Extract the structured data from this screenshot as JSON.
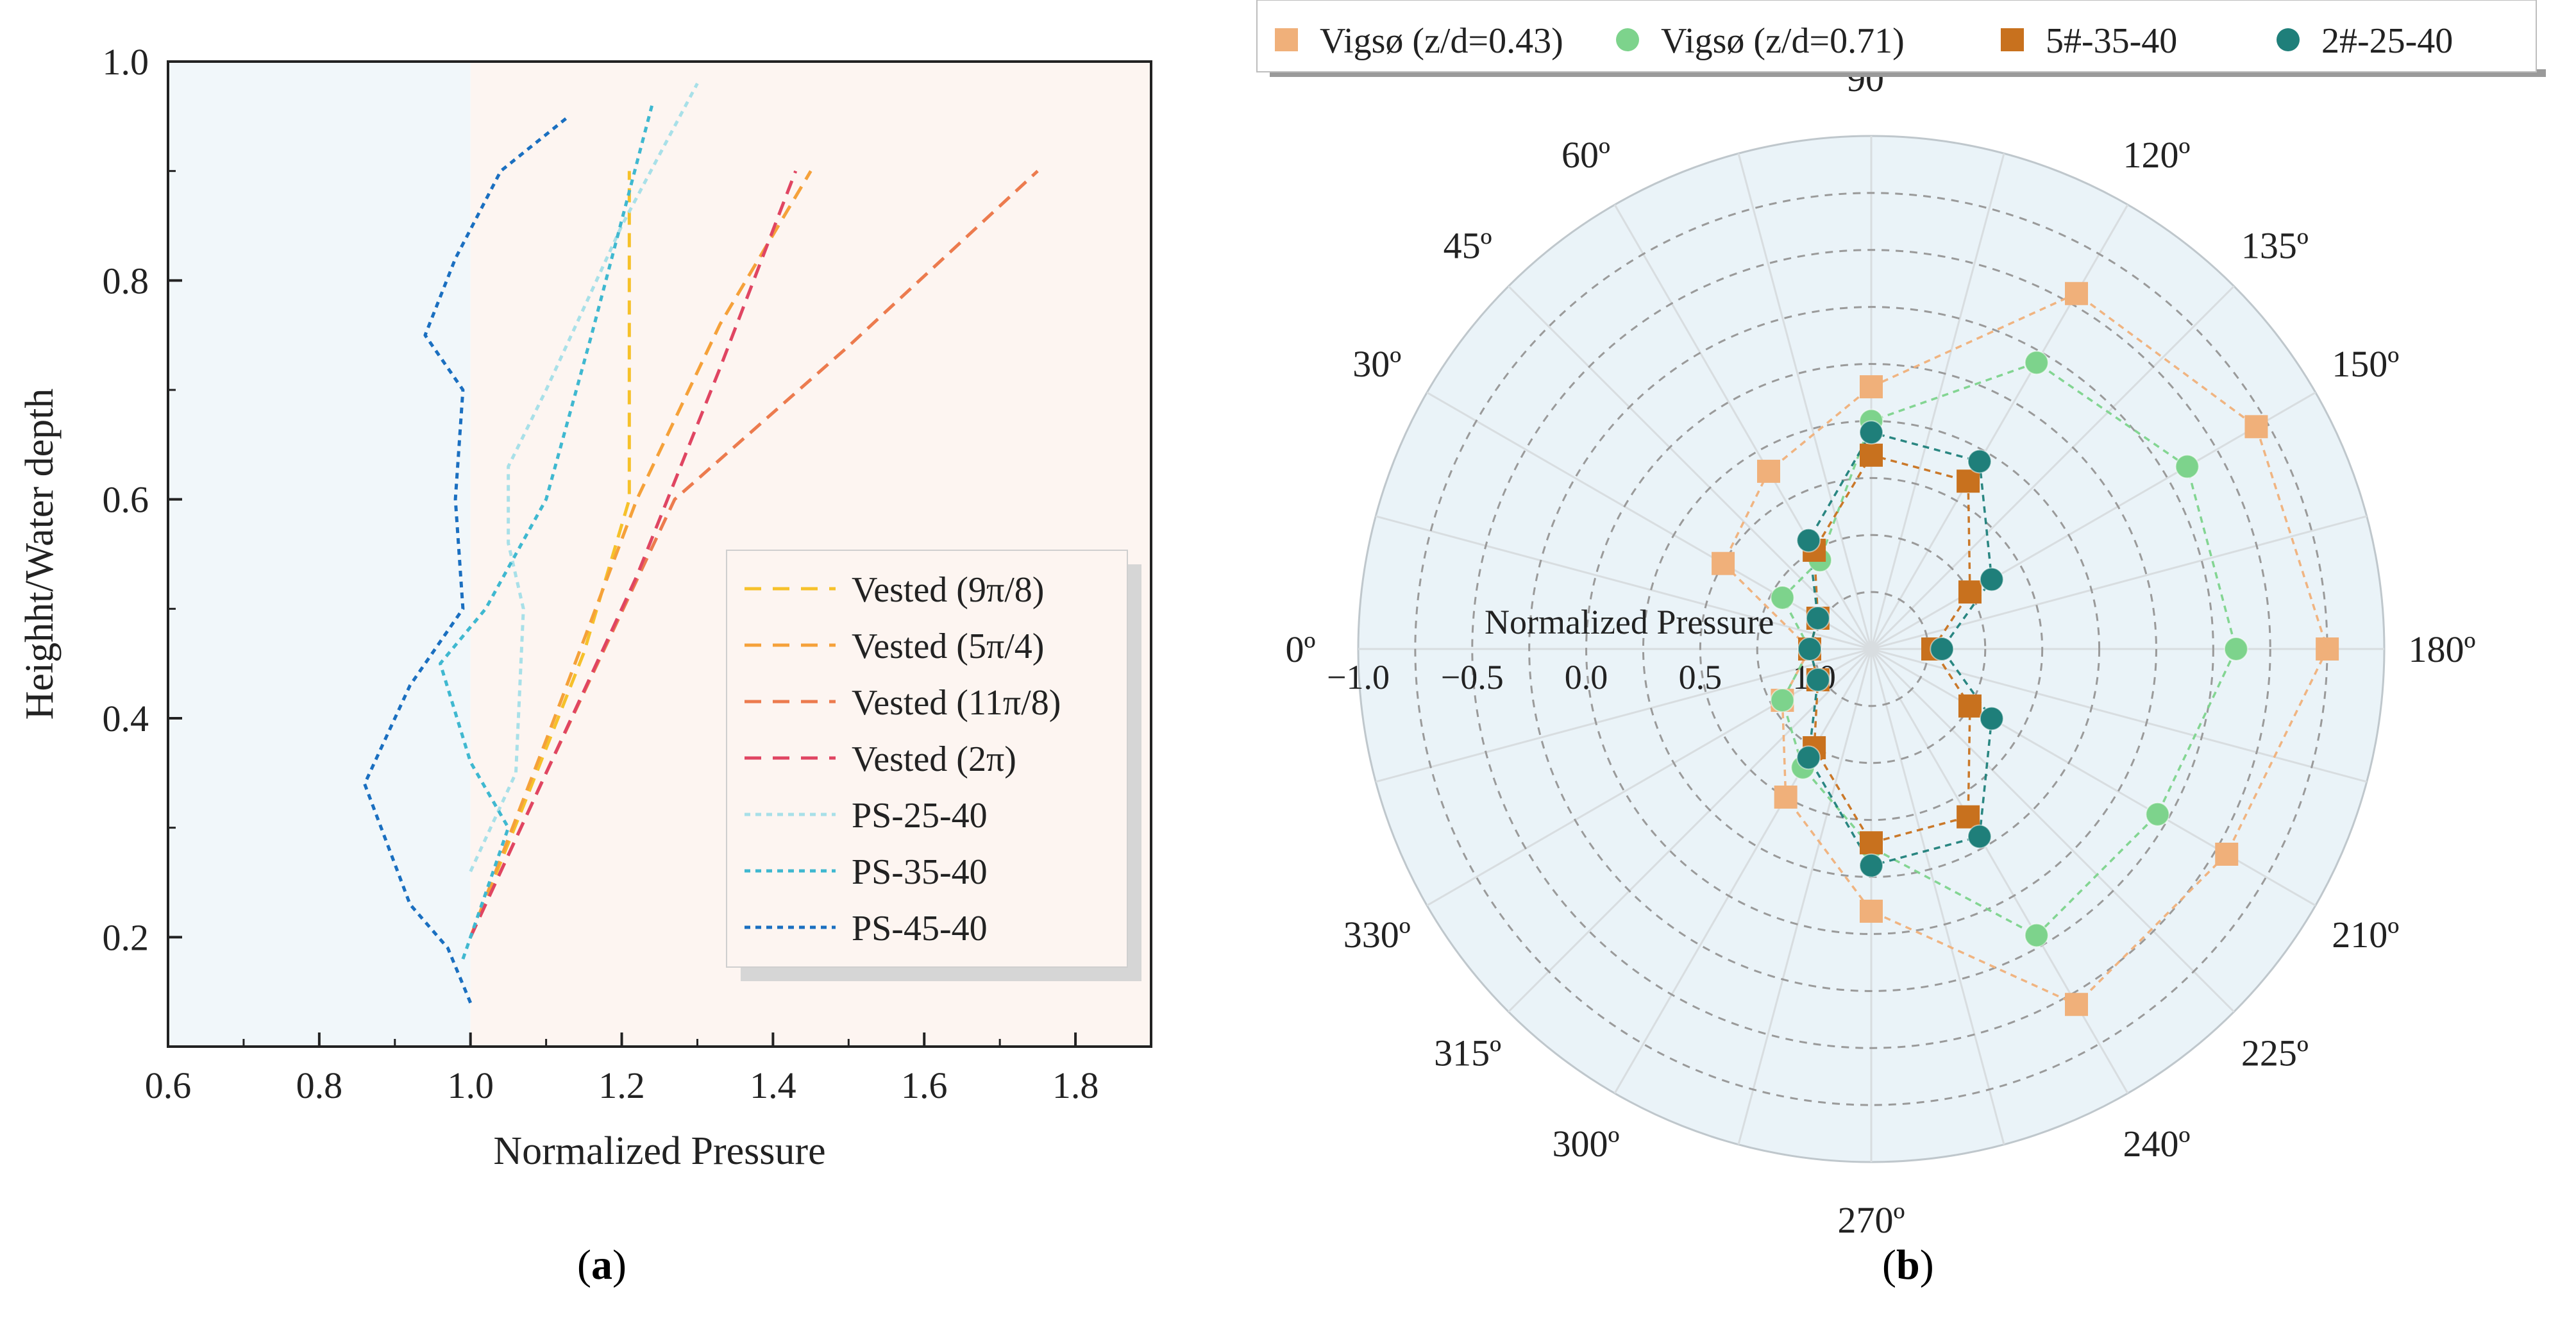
{
  "panels": {
    "a": {
      "caption_letter": "a"
    },
    "b": {
      "caption_letter": "b"
    }
  },
  "colors": {
    "left_bg": "#f1f7fa",
    "right_bg": "#fdf5f1",
    "polar_bg": "#eaf3f8",
    "grid": "#9a9a9a",
    "spoke": "#d8dde0"
  },
  "chart_data": [
    {
      "id": "a",
      "type": "line",
      "title": "",
      "xlabel": "Normalized Pressure",
      "ylabel": "Heighht/Water depth",
      "xlim": [
        0.6,
        1.9
      ],
      "ylim": [
        0.1,
        1.0
      ],
      "xticks": [
        0.6,
        0.8,
        1.0,
        1.2,
        1.4,
        1.6,
        1.8
      ],
      "xtick_labels": [
        "0.6",
        "0.8",
        "1.0",
        "1.2",
        "1.4",
        "1.6",
        "1.8"
      ],
      "yticks": [
        0.2,
        0.4,
        0.6,
        0.8,
        1.0
      ],
      "ytick_labels": [
        "0.2",
        "0.4",
        "0.6",
        "0.8",
        "1.0"
      ],
      "shaded_split_x": 1.0,
      "legend_position": "lower-right",
      "series": [
        {
          "name": "Vested (9π/8)",
          "color": "#f6c12a",
          "style": "dash",
          "x": [
            1.0,
            1.07,
            1.15,
            1.21,
            1.21,
            1.21
          ],
          "y": [
            0.2,
            0.32,
            0.46,
            0.6,
            0.75,
            0.9
          ]
        },
        {
          "name": "Vested (5π/4)",
          "color": "#f5a13a",
          "style": "dash",
          "x": [
            1.0,
            1.1,
            1.22,
            1.33,
            1.45
          ],
          "y": [
            0.2,
            0.38,
            0.6,
            0.76,
            0.9
          ]
        },
        {
          "name": "Vested (11π/8)",
          "color": "#ec7b4e",
          "style": "dash",
          "x": [
            1.0,
            1.1,
            1.27,
            1.5,
            1.75
          ],
          "y": [
            0.2,
            0.35,
            0.6,
            0.74,
            0.9
          ]
        },
        {
          "name": "Vested (2π)",
          "color": "#e04562",
          "style": "dash",
          "x": [
            1.0,
            1.1,
            1.22,
            1.33,
            1.43
          ],
          "y": [
            0.2,
            0.35,
            0.53,
            0.72,
            0.9
          ]
        },
        {
          "name": "PS-25-40",
          "color": "#a8e0e8",
          "style": "dot",
          "x": [
            1.0,
            1.06,
            1.07,
            1.05,
            1.05,
            1.1,
            1.2,
            1.3
          ],
          "y": [
            0.26,
            0.35,
            0.5,
            0.56,
            0.63,
            0.7,
            0.85,
            0.98
          ]
        },
        {
          "name": "PS-35-40",
          "color": "#3fb8d0",
          "style": "dot",
          "x": [
            0.99,
            1.05,
            1.0,
            0.96,
            1.02,
            1.1,
            1.16,
            1.24
          ],
          "y": [
            0.18,
            0.3,
            0.36,
            0.45,
            0.5,
            0.6,
            0.75,
            0.96
          ]
        },
        {
          "name": "PS-45-40",
          "color": "#1a6fc0",
          "style": "dot",
          "x": [
            1.0,
            0.97,
            0.92,
            0.86,
            0.92,
            0.99,
            0.98,
            0.99,
            0.94,
            0.98,
            1.04,
            1.13
          ],
          "y": [
            0.14,
            0.19,
            0.23,
            0.34,
            0.43,
            0.5,
            0.6,
            0.7,
            0.75,
            0.82,
            0.9,
            0.95
          ]
        }
      ]
    },
    {
      "id": "b",
      "type": "polar-scatter",
      "title": "",
      "r_label": "Normalized Pressure",
      "r_range": [
        1.25,
        -1.0
      ],
      "r_ticks": [
        1.0,
        0.5,
        0.0,
        -0.5,
        -1.0
      ],
      "r_tick_labels": [
        "1.0",
        "0.5",
        "0.0",
        "−0.5",
        "−1.0"
      ],
      "angle_labels": [
        {
          "deg": 0,
          "label": "0º"
        },
        {
          "deg": 30,
          "label": "30º"
        },
        {
          "deg": 45,
          "label": "45º"
        },
        {
          "deg": 60,
          "label": "60º"
        },
        {
          "deg": 90,
          "label": "90º"
        },
        {
          "deg": 120,
          "label": "120º"
        },
        {
          "deg": 135,
          "label": "135º"
        },
        {
          "deg": 150,
          "label": "150º"
        },
        {
          "deg": 180,
          "label": "180º"
        },
        {
          "deg": 210,
          "label": "210º"
        },
        {
          "deg": 225,
          "label": "225º"
        },
        {
          "deg": 240,
          "label": "240º"
        },
        {
          "deg": 270,
          "label": "270º"
        },
        {
          "deg": 300,
          "label": "300º"
        },
        {
          "deg": 315,
          "label": "315º"
        },
        {
          "deg": 330,
          "label": "330º"
        }
      ],
      "angle_convention": "0º at left, increasing clockwise",
      "legend_position": "top",
      "series": [
        {
          "name": "Vigsø (z/d=0.43)",
          "color": "#f0b07a",
          "marker": "square",
          "angles": [
            0,
            30,
            60,
            90,
            120,
            150,
            180,
            210,
            240,
            270,
            300,
            330
          ],
          "values": [
            0.98,
            0.5,
            0.35,
            0.1,
            -0.55,
            -0.7,
            -0.75,
            -0.55,
            -0.55,
            0.1,
            0.5,
            0.8
          ]
        },
        {
          "name": "Vigsø (z/d=0.71)",
          "color": "#7dd38c",
          "marker": "circle",
          "angles": [
            0,
            30,
            60,
            90,
            120,
            150,
            180,
            210,
            240,
            270,
            300,
            330
          ],
          "values": [
            0.98,
            0.8,
            0.8,
            0.25,
            -0.2,
            -0.35,
            -0.35,
            -0.2,
            -0.2,
            0.38,
            0.65,
            0.8
          ]
        },
        {
          "name": "5#-35-40",
          "color": "#c8711e",
          "marker": "square",
          "angles": [
            0,
            30,
            60,
            90,
            120,
            150,
            180,
            210,
            240,
            270,
            300,
            330
          ],
          "values": [
            0.98,
            0.98,
            0.75,
            0.4,
            0.4,
            0.75,
            0.98,
            0.75,
            0.4,
            0.4,
            0.75,
            0.98
          ]
        },
        {
          "name": "2#-25-40",
          "color": "#1f7f7a",
          "marker": "circle",
          "angles": [
            0,
            30,
            60,
            90,
            120,
            150,
            180,
            210,
            240,
            270,
            300,
            330
          ],
          "values": [
            0.98,
            0.98,
            0.7,
            0.3,
            0.3,
            0.64,
            0.94,
            0.64,
            0.3,
            0.3,
            0.7,
            0.98
          ]
        }
      ]
    }
  ]
}
